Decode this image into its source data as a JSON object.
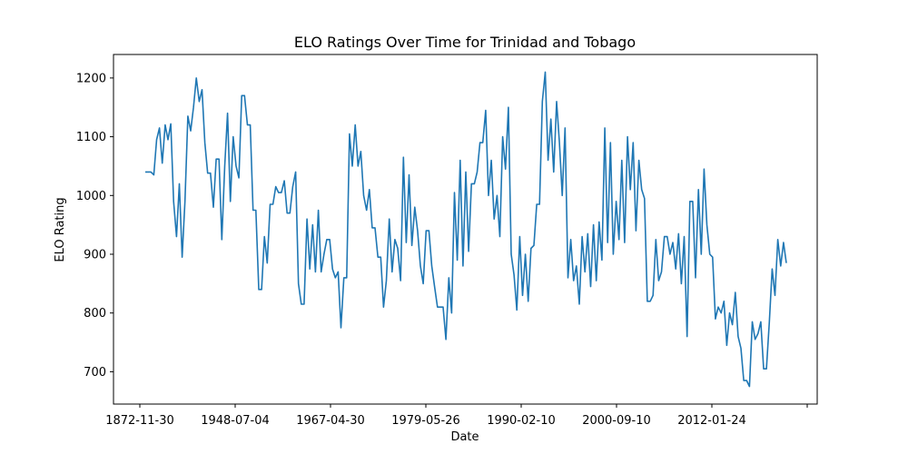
{
  "chart_data": {
    "type": "line",
    "title": "ELO Ratings Over Time for Trinidad and Tobago",
    "xlabel": "Date",
    "ylabel": "ELO Rating",
    "x_ticks": [
      "1872-11-30",
      "1948-07-04",
      "1967-04-30",
      "1979-05-26",
      "1990-02-10",
      "2000-09-10",
      "2012-01-24",
      ""
    ],
    "y_ticks": [
      700,
      800,
      900,
      1000,
      1100,
      1200
    ],
    "ylim": [
      645,
      1240
    ],
    "grid": false,
    "legend": "none",
    "series": [
      {
        "color": "#1f77b4",
        "y": [
          1040,
          1040,
          1040,
          1035,
          1095,
          1115,
          1055,
          1120,
          1095,
          1122,
          990,
          930,
          1020,
          895,
          990,
          1135,
          1110,
          1150,
          1200,
          1160,
          1180,
          1090,
          1038,
          1038,
          980,
          1062,
          1062,
          925,
          1050,
          1140,
          990,
          1100,
          1050,
          1030,
          1170,
          1170,
          1120,
          1120,
          975,
          975,
          840,
          840,
          930,
          885,
          985,
          985,
          1015,
          1005,
          1005,
          1025,
          970,
          970,
          1015,
          1040,
          850,
          815,
          815,
          960,
          875,
          950,
          870,
          975,
          870,
          900,
          925,
          925,
          875,
          860,
          870,
          775,
          860,
          860,
          1105,
          1050,
          1120,
          1050,
          1075,
          1000,
          975,
          1010,
          945,
          945,
          895,
          895,
          810,
          855,
          960,
          870,
          925,
          910,
          855,
          1065,
          920,
          1035,
          915,
          980,
          940,
          880,
          850,
          940,
          940,
          880,
          845,
          810,
          810,
          810,
          755,
          860,
          800,
          1005,
          890,
          1060,
          880,
          1040,
          905,
          1020,
          1020,
          1040,
          1090,
          1090,
          1145,
          1000,
          1060,
          960,
          1000,
          930,
          1100,
          1045,
          1150,
          900,
          865,
          805,
          930,
          830,
          900,
          820,
          910,
          915,
          985,
          985,
          1160,
          1210,
          1060,
          1130,
          1040,
          1160,
          1090,
          1000,
          1115,
          860,
          925,
          855,
          880,
          815,
          930,
          870,
          935,
          845,
          950,
          855,
          955,
          890,
          1115,
          920,
          1090,
          900,
          990,
          925,
          1060,
          920,
          1100,
          1010,
          1090,
          940,
          1060,
          1010,
          995,
          820,
          820,
          830,
          925,
          855,
          870,
          930,
          930,
          900,
          920,
          875,
          935,
          850,
          930,
          760,
          990,
          990,
          860,
          1010,
          900,
          1045,
          950,
          900,
          895,
          790,
          810,
          800,
          820,
          745,
          800,
          780,
          835,
          760,
          740,
          685,
          685,
          675,
          785,
          755,
          765,
          785,
          705,
          705,
          785,
          875,
          830,
          925,
          880,
          920,
          885
        ]
      }
    ]
  }
}
